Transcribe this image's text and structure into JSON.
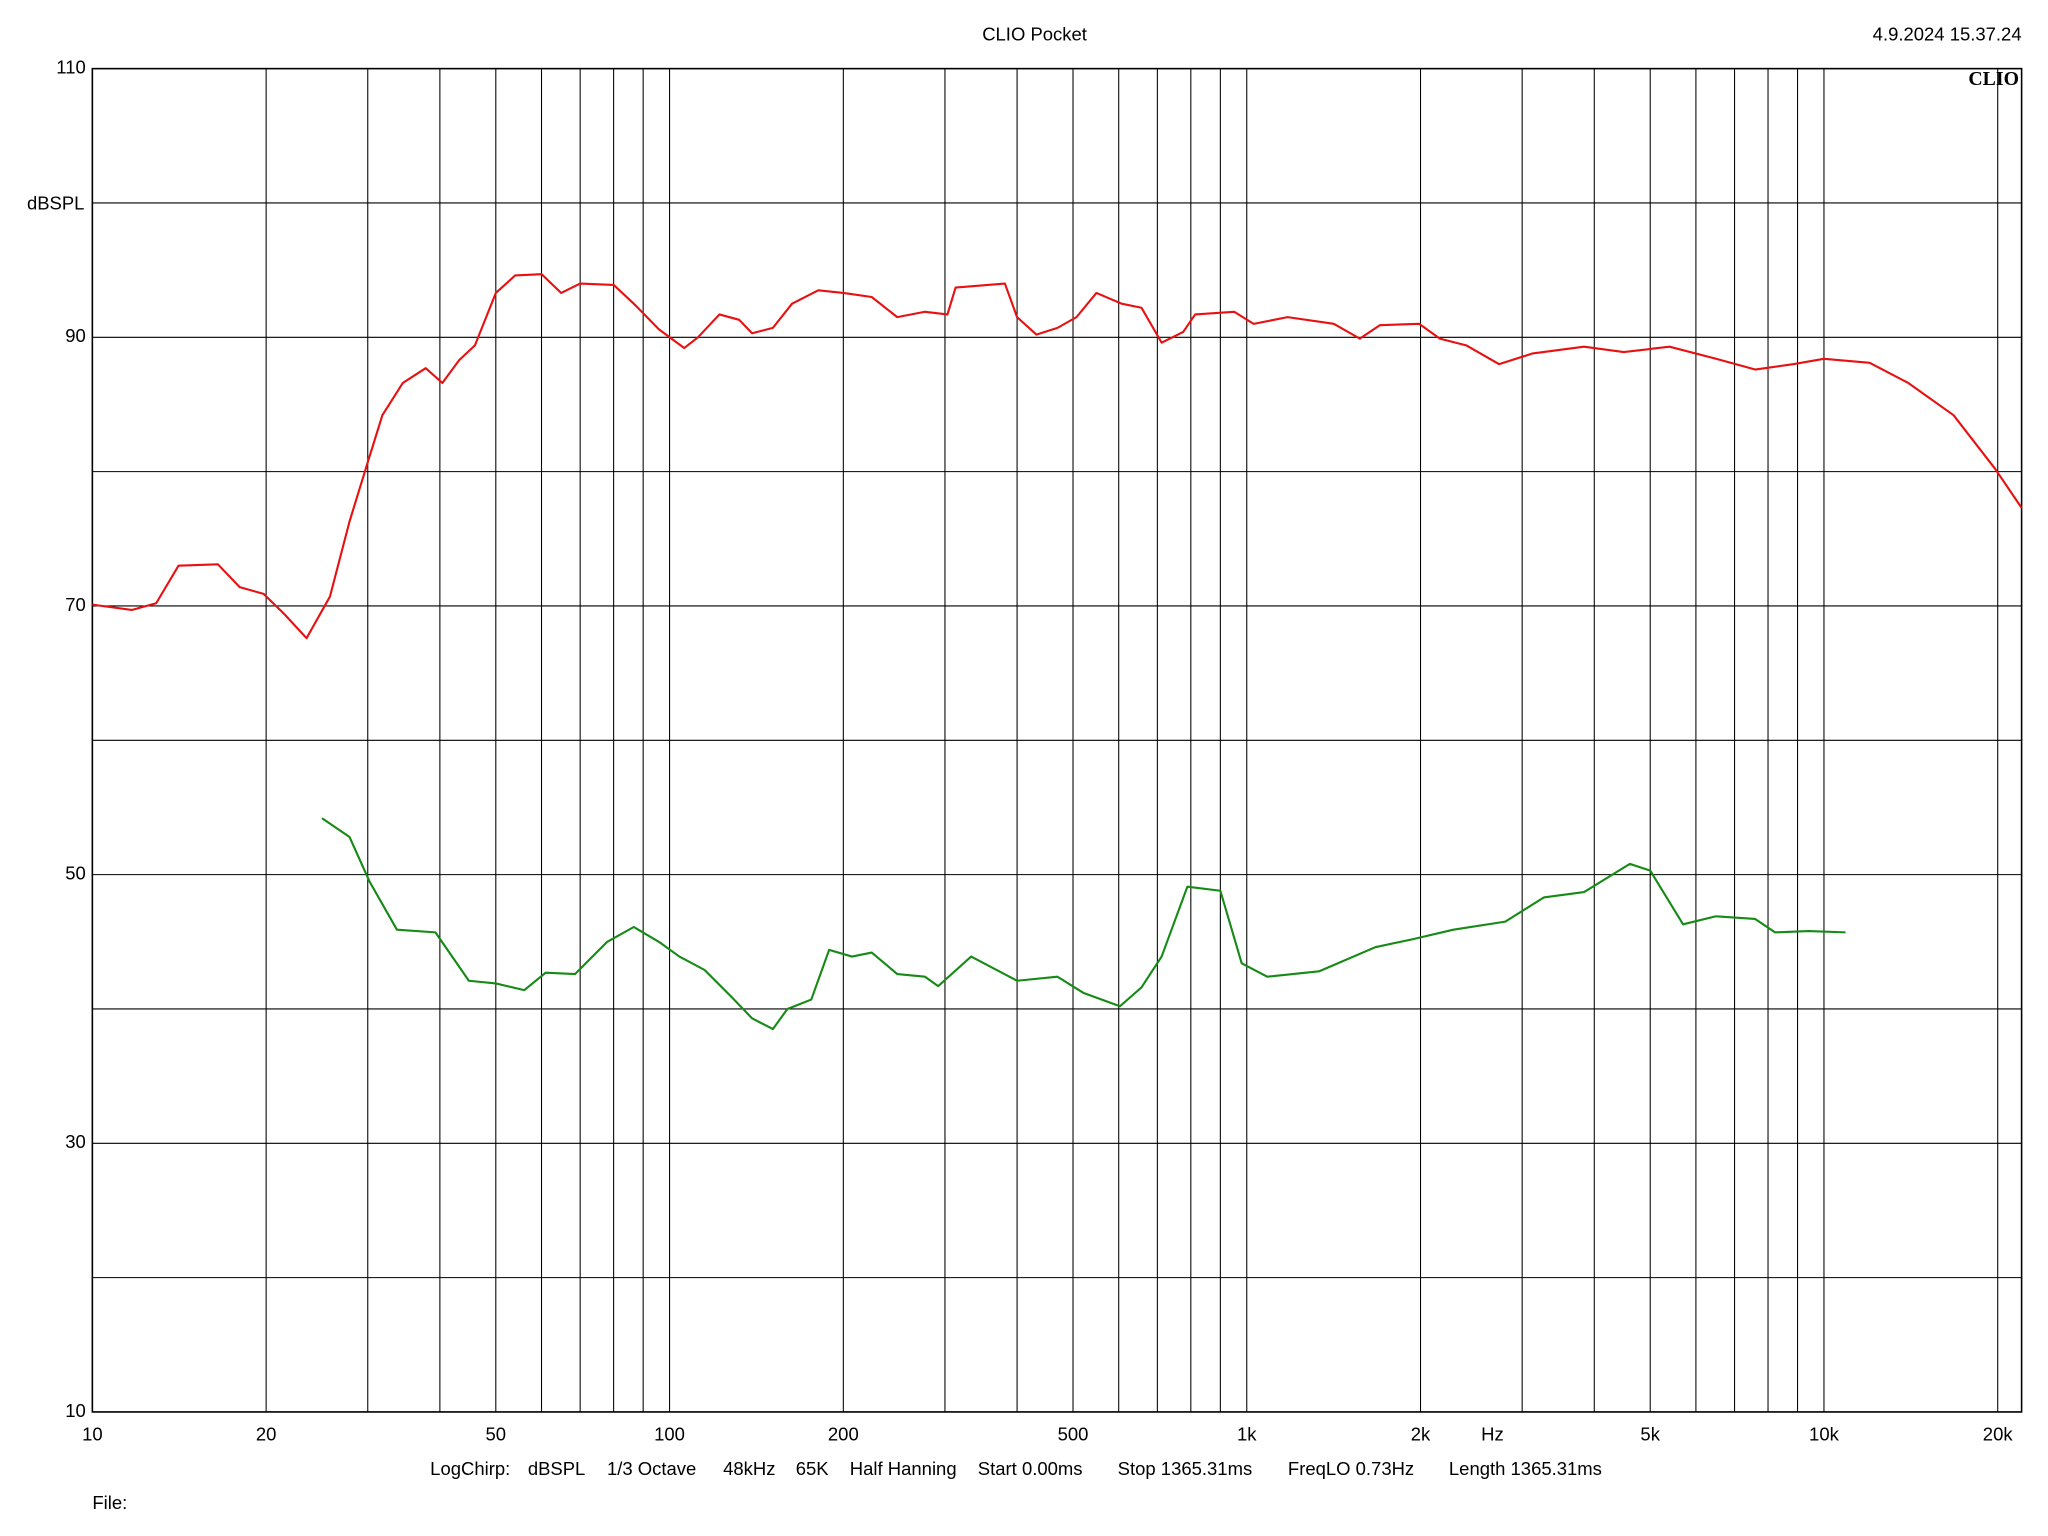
{
  "chart_data": {
    "type": "line",
    "title": "CLIO Pocket",
    "timestamp": "4.9.2024 15.37.24",
    "logo": "CLIO",
    "y_label": "dBSPL",
    "x_label": "Hz",
    "file_label": "File:",
    "measurement_info": [
      "LogChirp:",
      "dBSPL",
      "1/3 Octave",
      "48kHz",
      "65K",
      "Half Hanning",
      "Start 0.00ms",
      "Stop 1365.31ms",
      "FreqLO 0.73Hz",
      "Length 1365.31ms"
    ],
    "x_scale": "log",
    "xlim": [
      10,
      22000
    ],
    "ylim": [
      10,
      110
    ],
    "grid": true,
    "yticks": [
      10,
      30,
      50,
      70,
      90,
      110
    ],
    "yminor": [
      20,
      40,
      60,
      80,
      100
    ],
    "xticks": [
      10,
      20,
      50,
      100,
      200,
      500,
      {
        "value": 1000,
        "label": "1k"
      },
      {
        "value": 2000,
        "label": "2k"
      },
      {
        "value": 5000,
        "label": "5k"
      },
      {
        "value": 10000,
        "label": "10k"
      },
      {
        "value": 20000,
        "label": "20k"
      }
    ],
    "xminor": [
      30,
      40,
      60,
      70,
      80,
      90,
      300,
      400,
      600,
      700,
      800,
      900,
      3000,
      4000,
      6000,
      7000,
      8000,
      9000
    ],
    "series": [
      {
        "color": "#e81010",
        "x": [
          10,
          11.7,
          12.9,
          14.1,
          16.5,
          18,
          19.8,
          21.5,
          23.5,
          25.8,
          27.9,
          29.9,
          31.8,
          34.5,
          37.8,
          40.4,
          43.2,
          46,
          50,
          54,
          60,
          64.9,
          70,
          80,
          86.7,
          95.8,
          106,
          112,
          122,
          132,
          139,
          151,
          163,
          181,
          200,
          224,
          248,
          277,
          303,
          313,
          381,
          400,
          432,
          470,
          507,
          549,
          607,
          657,
          712,
          776,
          814,
          951,
          1028,
          1177,
          1415,
          1570,
          1700,
          1990,
          2160,
          2400,
          2737,
          3130,
          3840,
          4500,
          5400,
          6500,
          7600,
          8840,
          10000,
          12000,
          14000,
          16770,
          19800,
          22000
        ],
        "values": [
          70.1,
          69.7,
          70.2,
          73,
          73.1,
          71.4,
          70.9,
          69.4,
          67.6,
          70.7,
          76.3,
          80.5,
          84.2,
          86.6,
          87.7,
          86.6,
          88.3,
          89.4,
          93.3,
          94.6,
          94.7,
          93.3,
          94,
          93.9,
          92.5,
          90.6,
          89.2,
          90,
          91.7,
          91.3,
          90.3,
          90.7,
          92.5,
          93.5,
          93.3,
          93,
          91.5,
          91.9,
          91.7,
          93.7,
          94,
          91.5,
          90.2,
          90.7,
          91.5,
          93.3,
          92.5,
          92.2,
          89.6,
          90.4,
          91.7,
          91.9,
          91,
          91.5,
          91,
          89.9,
          90.9,
          91,
          89.9,
          89.4,
          88,
          88.8,
          89.3,
          88.9,
          89.3,
          88.4,
          87.6,
          88,
          88.4,
          88.1,
          86.6,
          84.2,
          80.2,
          77.3
        ]
      },
      {
        "color": "#158a15",
        "x": [
          25,
          27.9,
          30.2,
          33.7,
          39.3,
          44.9,
          50,
          56,
          61,
          68.6,
          78,
          86.7,
          95.8,
          104,
          115,
          128,
          139,
          151,
          160,
          176,
          189,
          207,
          224,
          248,
          277,
          292,
          333,
          400,
          470,
          521,
          603,
          657,
          712,
          789,
          900,
          980,
          1085,
          1334,
          1670,
          1942,
          2280,
          2805,
          3270,
          3840,
          4610,
          5000,
          5700,
          6500,
          7600,
          8230,
          9400,
          10900
        ],
        "values": [
          54.2,
          52.8,
          49.5,
          45.9,
          45.7,
          42.1,
          41.9,
          41.4,
          42.7,
          42.6,
          45,
          46.1,
          45,
          43.9,
          42.9,
          40.9,
          39.3,
          38.5,
          40,
          40.7,
          44.4,
          43.9,
          44.2,
          42.6,
          42.4,
          41.7,
          43.9,
          42.1,
          42.4,
          41.2,
          40.2,
          41.6,
          43.9,
          49.1,
          48.8,
          43.4,
          42.4,
          42.8,
          44.6,
          45.2,
          45.9,
          46.5,
          48.3,
          48.7,
          50.8,
          50.3,
          46.3,
          46.9,
          46.7,
          45.7,
          45.8,
          45.7
        ]
      }
    ]
  }
}
